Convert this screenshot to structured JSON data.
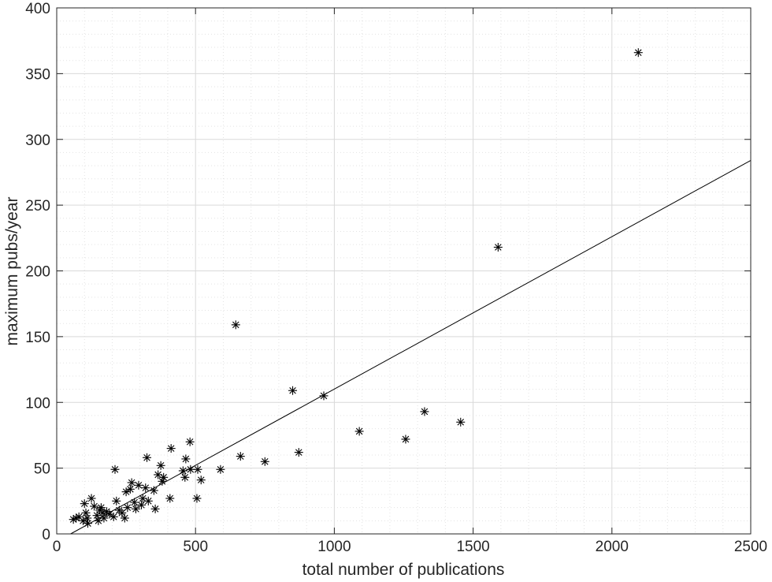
{
  "chart_data": {
    "type": "scatter",
    "title": "",
    "xlabel": "total number of publications",
    "ylabel": "maximum pubs/year",
    "xlim": [
      0,
      2500
    ],
    "ylim": [
      0,
      400
    ],
    "xticks": [
      0,
      500,
      1000,
      1500,
      2000,
      2500
    ],
    "yticks": [
      0,
      50,
      100,
      150,
      200,
      250,
      300,
      350,
      400
    ],
    "xtick_labels": [
      "0",
      "500",
      "1000",
      "1500",
      "2000",
      "2500"
    ],
    "ytick_labels": [
      "0",
      "50",
      "100",
      "150",
      "200",
      "250",
      "300",
      "350",
      "400"
    ],
    "grid": "major solid, minor dotted",
    "marker": "asterisk",
    "colors": {
      "marker": "#000000",
      "fit_line": "#000000",
      "grid": "#d9d9d9",
      "axes": "#262626"
    },
    "series": [
      {
        "points": [
          {
            "x": 60,
            "y": 11
          },
          {
            "x": 70,
            "y": 12
          },
          {
            "x": 80,
            "y": 13
          },
          {
            "x": 95,
            "y": 10
          },
          {
            "x": 100,
            "y": 23
          },
          {
            "x": 105,
            "y": 16
          },
          {
            "x": 110,
            "y": 12
          },
          {
            "x": 112,
            "y": 8
          },
          {
            "x": 125,
            "y": 27
          },
          {
            "x": 135,
            "y": 21
          },
          {
            "x": 145,
            "y": 14
          },
          {
            "x": 150,
            "y": 10
          },
          {
            "x": 155,
            "y": 18
          },
          {
            "x": 160,
            "y": 20
          },
          {
            "x": 165,
            "y": 16
          },
          {
            "x": 170,
            "y": 12
          },
          {
            "x": 180,
            "y": 17
          },
          {
            "x": 190,
            "y": 15
          },
          {
            "x": 205,
            "y": 13
          },
          {
            "x": 210,
            "y": 49
          },
          {
            "x": 215,
            "y": 25
          },
          {
            "x": 225,
            "y": 18
          },
          {
            "x": 235,
            "y": 16
          },
          {
            "x": 245,
            "y": 12
          },
          {
            "x": 250,
            "y": 32
          },
          {
            "x": 255,
            "y": 20
          },
          {
            "x": 265,
            "y": 34
          },
          {
            "x": 270,
            "y": 39
          },
          {
            "x": 280,
            "y": 24
          },
          {
            "x": 285,
            "y": 19
          },
          {
            "x": 295,
            "y": 37
          },
          {
            "x": 305,
            "y": 22
          },
          {
            "x": 310,
            "y": 27
          },
          {
            "x": 320,
            "y": 35
          },
          {
            "x": 325,
            "y": 58
          },
          {
            "x": 330,
            "y": 25
          },
          {
            "x": 350,
            "y": 33
          },
          {
            "x": 355,
            "y": 19
          },
          {
            "x": 365,
            "y": 45
          },
          {
            "x": 375,
            "y": 52
          },
          {
            "x": 380,
            "y": 40
          },
          {
            "x": 385,
            "y": 43
          },
          {
            "x": 408,
            "y": 27
          },
          {
            "x": 412,
            "y": 65
          },
          {
            "x": 455,
            "y": 48
          },
          {
            "x": 462,
            "y": 43
          },
          {
            "x": 465,
            "y": 57
          },
          {
            "x": 480,
            "y": 70
          },
          {
            "x": 482,
            "y": 49
          },
          {
            "x": 505,
            "y": 27
          },
          {
            "x": 508,
            "y": 49
          },
          {
            "x": 520,
            "y": 41
          },
          {
            "x": 590,
            "y": 49
          },
          {
            "x": 645,
            "y": 159
          },
          {
            "x": 662,
            "y": 59
          },
          {
            "x": 750,
            "y": 55
          },
          {
            "x": 850,
            "y": 109
          },
          {
            "x": 872,
            "y": 62
          },
          {
            "x": 962,
            "y": 105
          },
          {
            "x": 1090,
            "y": 78
          },
          {
            "x": 1257,
            "y": 72
          },
          {
            "x": 1325,
            "y": 93
          },
          {
            "x": 1455,
            "y": 85
          },
          {
            "x": 1590,
            "y": 218
          },
          {
            "x": 2095,
            "y": 366
          }
        ]
      }
    ],
    "fit_line": {
      "x": [
        50,
        2500
      ],
      "y": [
        0,
        284
      ]
    }
  }
}
